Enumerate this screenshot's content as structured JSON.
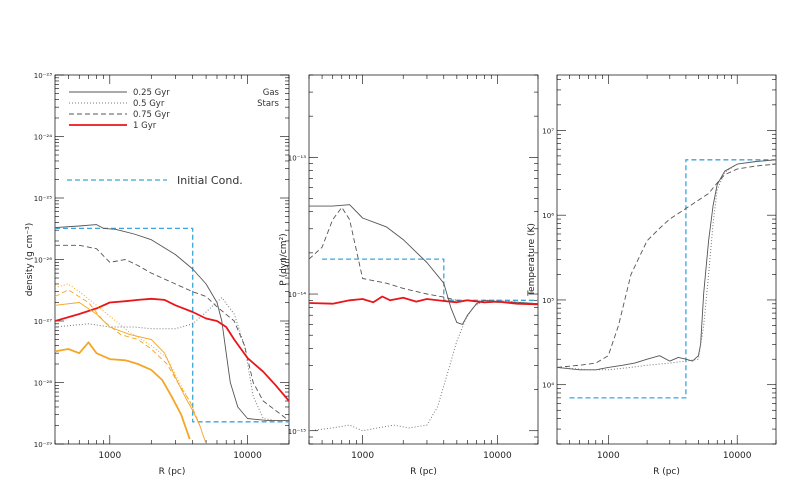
{
  "chart_data": [
    {
      "type": "line",
      "ylabel": "density (g cm⁻³)",
      "xlabel": "R (pc)",
      "xscale": "log",
      "yscale": "log",
      "xlim": [
        400,
        20000
      ],
      "ylim": [
        1e-29,
        1e-23
      ],
      "xticks": [
        {
          "v": 1000,
          "label": "1000"
        },
        {
          "v": 10000,
          "label": "10000"
        }
      ],
      "yticks": [
        {
          "v": 1e-23,
          "label": "10⁻²³"
        },
        {
          "v": 1e-24,
          "label": "10⁻²⁴"
        },
        {
          "v": 1e-25,
          "label": "10⁻²⁵"
        },
        {
          "v": 1e-26,
          "label": "10⁻²⁶"
        },
        {
          "v": 1e-27,
          "label": "10⁻²⁷"
        },
        {
          "v": 1e-28,
          "label": "10⁻²⁸"
        },
        {
          "v": 1e-29,
          "label": "10⁻²⁹"
        }
      ],
      "legend": {
        "entries": [
          {
            "label": "0.25 Gyr",
            "style": "solid",
            "color": "#555555"
          },
          {
            "label": "0.5 Gyr",
            "style": "dotted",
            "color": "#777777"
          },
          {
            "label": "0.75 Gyr",
            "style": "dashed",
            "color": "#555555"
          },
          {
            "label": "1 Gyr",
            "style": "thick",
            "color": "#e8161b"
          }
        ],
        "gas_label": "Gas",
        "stars_label": "Stars",
        "initial_label": "Initial Cond."
      },
      "series": [
        {
          "name": "Initial Cond.",
          "component": "gas",
          "style": "init",
          "color": "#3aa6dd",
          "x": [
            400,
            4000,
            4000,
            20000
          ],
          "y": [
            3.2e-26,
            3.2e-26,
            2.3e-29,
            2.3e-29
          ]
        },
        {
          "name": "0.25 Gyr",
          "component": "gas",
          "style": "solid",
          "color": "#555555",
          "x": [
            400,
            600,
            800,
            900,
            1100,
            1500,
            2000,
            3000,
            4000,
            5000,
            6000,
            6500,
            7000,
            7500,
            8500,
            10000,
            14000,
            20000
          ],
          "y": [
            3.3e-26,
            3.5e-26,
            3.7e-26,
            3.2e-26,
            3.1e-26,
            2.6e-26,
            2.1e-26,
            1.2e-26,
            7e-27,
            4e-27,
            2e-27,
            1e-27,
            3e-28,
            1e-28,
            4e-29,
            2.6e-29,
            2.4e-29,
            2.4e-29
          ]
        },
        {
          "name": "0.5 Gyr",
          "component": "gas",
          "style": "dotted",
          "color": "#777777",
          "x": [
            400,
            700,
            1000,
            1500,
            2000,
            3000,
            4000,
            5000,
            6500,
            8000,
            9500,
            11000,
            13000,
            16000,
            20000
          ],
          "y": [
            8e-28,
            9e-28,
            8e-28,
            8e-28,
            7.5e-28,
            7.5e-28,
            9e-28,
            1.4e-27,
            2.4e-27,
            1.3e-27,
            4e-28,
            6e-29,
            2.6e-29,
            2.4e-29,
            2.4e-29
          ]
        },
        {
          "name": "0.75 Gyr",
          "component": "gas",
          "style": "dashed",
          "color": "#555555",
          "x": [
            400,
            600,
            800,
            1000,
            1300,
            1600,
            2000,
            3000,
            4000,
            5000,
            6000,
            8000,
            9500,
            11000,
            13000,
            16000,
            20000
          ],
          "y": [
            1.7e-26,
            1.7e-26,
            1.5e-26,
            9e-27,
            1e-26,
            8e-27,
            6e-27,
            4e-27,
            3e-27,
            2.5e-27,
            1.7e-27,
            1e-27,
            4e-28,
            1e-28,
            5e-29,
            3.5e-29,
            2.4e-29
          ]
        },
        {
          "name": "1 Gyr",
          "component": "gas",
          "style": "thick",
          "color": "#e8161b",
          "x": [
            400,
            600,
            800,
            1000,
            1300,
            1600,
            2000,
            2500,
            3000,
            4000,
            5000,
            6000,
            7000,
            8000,
            10000,
            13000,
            16000,
            20000
          ],
          "y": [
            1e-27,
            1.3e-27,
            1.6e-27,
            2e-27,
            2.1e-27,
            2.2e-27,
            2.3e-27,
            2.2e-27,
            1.8e-27,
            1.4e-27,
            1.1e-27,
            1e-27,
            8e-28,
            5e-28,
            2.5e-28,
            1.5e-28,
            9e-29,
            5e-29
          ]
        },
        {
          "name": "0.25 Gyr",
          "component": "stars",
          "style": "solid",
          "color": "#f5a623",
          "x": [
            400,
            600,
            800,
            1000,
            1400,
            2000,
            2500,
            3000,
            3500,
            4000,
            4500,
            5000
          ],
          "y": [
            1.8e-27,
            2e-27,
            1.3e-27,
            8e-28,
            6e-28,
            5e-28,
            3e-28,
            1.2e-28,
            6e-29,
            3.5e-29,
            2e-29,
            1e-29
          ]
        },
        {
          "name": "0.5 Gyr",
          "component": "stars",
          "style": "dotted",
          "color": "#f5a623",
          "x": [
            400,
            500,
            600,
            800,
            1000,
            1400,
            2000,
            2600,
            3200,
            4000
          ],
          "y": [
            3.5e-27,
            4e-27,
            3e-27,
            1.8e-27,
            1.2e-27,
            6.5e-28,
            4e-28,
            2.5e-28,
            1e-28,
            4e-29
          ]
        },
        {
          "name": "0.75 Gyr",
          "component": "stars",
          "style": "dashed",
          "color": "#f5a623",
          "x": [
            400,
            500,
            700,
            900,
            1200,
            1600,
            2000,
            2600,
            3200,
            3800,
            4500
          ],
          "y": [
            2.5e-27,
            3.2e-27,
            2e-27,
            1e-27,
            6e-28,
            5e-28,
            3.5e-28,
            2e-28,
            9e-29,
            5e-29,
            2e-29
          ]
        },
        {
          "name": "1 Gyr",
          "component": "stars",
          "style": "thick",
          "color": "#f5a623",
          "x": [
            400,
            500,
            600,
            700,
            800,
            1000,
            1300,
            1600,
            2000,
            2400,
            2800,
            3300,
            3800
          ],
          "y": [
            3.2e-28,
            3.5e-28,
            3e-28,
            4.5e-28,
            3e-28,
            2.4e-28,
            2.3e-28,
            2e-28,
            1.6e-28,
            1.1e-28,
            6e-29,
            3e-29,
            1.2e-29
          ]
        }
      ]
    },
    {
      "type": "line",
      "ylabel": "P (dyn/cm²)",
      "xlabel": "R (pc)",
      "xscale": "log",
      "yscale": "log",
      "xlim": [
        400,
        20000
      ],
      "ylim": [
        8e-16,
        4e-13
      ],
      "xticks": [
        {
          "v": 1000,
          "label": "1000"
        },
        {
          "v": 10000,
          "label": "10000"
        }
      ],
      "yticks": [
        {
          "v": 1e-13,
          "label": "10⁻¹³"
        },
        {
          "v": 1e-14,
          "label": "10⁻¹⁴"
        },
        {
          "v": 1e-15,
          "label": "10⁻¹⁵"
        }
      ],
      "series": [
        {
          "name": "Initial Cond.",
          "style": "init",
          "color": "#3aa6dd",
          "x": [
            500,
            4000,
            4000,
            20000
          ],
          "y": [
            1.8e-14,
            1.8e-14,
            9e-15,
            9e-15
          ]
        },
        {
          "name": "0.25 Gyr",
          "style": "solid",
          "color": "#555555",
          "x": [
            400,
            600,
            800,
            1000,
            1500,
            2000,
            3000,
            4000,
            4500,
            5000,
            5500,
            6000,
            7000,
            8000,
            10000,
            14000,
            20000
          ],
          "y": [
            4.4e-14,
            4.4e-14,
            4.5e-14,
            3.6e-14,
            3.1e-14,
            2.5e-14,
            1.7e-14,
            1.2e-14,
            8e-15,
            6.2e-15,
            6e-15,
            7e-15,
            8.5e-15,
            9e-15,
            8.8e-15,
            8.7e-15,
            8.5e-15
          ]
        },
        {
          "name": "0.5 Gyr",
          "style": "dotted",
          "color": "#777777",
          "x": [
            400,
            600,
            800,
            1000,
            1300,
            1700,
            2200,
            3000,
            3600,
            4200,
            5000,
            5800,
            6600,
            8000,
            10000,
            20000
          ],
          "y": [
            1e-15,
            1.05e-15,
            1.1e-15,
            1e-15,
            1.05e-15,
            1.1e-15,
            1.05e-15,
            1.1e-15,
            1.5e-15,
            2.5e-15,
            4.5e-15,
            6.5e-15,
            8e-15,
            9e-15,
            9e-15,
            8.5e-15
          ]
        },
        {
          "name": "0.75 Gyr",
          "style": "dashed",
          "color": "#555555",
          "x": [
            400,
            500,
            600,
            700,
            800,
            1000,
            1500,
            2000,
            3000,
            4000,
            5000,
            6000,
            8000,
            10000,
            20000
          ],
          "y": [
            1.8e-14,
            2.2e-14,
            3.5e-14,
            4.3e-14,
            3.5e-14,
            1.3e-14,
            1.2e-14,
            1.1e-14,
            1e-14,
            9.5e-15,
            9e-15,
            9e-15,
            8.8e-15,
            8.7e-15,
            8.5e-15
          ]
        },
        {
          "name": "1 Gyr",
          "style": "thick",
          "color": "#e8161b",
          "x": [
            400,
            600,
            800,
            1000,
            1200,
            1400,
            1600,
            2000,
            2500,
            3000,
            4000,
            5000,
            6000,
            8000,
            10000,
            14000,
            20000
          ],
          "y": [
            8.6e-15,
            8.5e-15,
            9e-15,
            9.2e-15,
            8.7e-15,
            9.6e-15,
            9e-15,
            9.4e-15,
            8.8e-15,
            9.2e-15,
            8.9e-15,
            8.7e-15,
            9e-15,
            8.7e-15,
            8.8e-15,
            8.5e-15,
            8.4e-15
          ]
        }
      ]
    },
    {
      "type": "line",
      "ylabel": "Temperature (K)",
      "xlabel": "R (pc)",
      "xscale": "log",
      "yscale": "log",
      "xlim": [
        400,
        20000
      ],
      "ylim": [
        2000.0,
        45000000.0
      ],
      "xticks": [
        {
          "v": 1000,
          "label": "1000"
        },
        {
          "v": 10000,
          "label": "10000"
        }
      ],
      "yticks": [
        {
          "v": 10000000.0,
          "label": "10⁷"
        },
        {
          "v": 1000000.0,
          "label": "10⁶"
        },
        {
          "v": 100000.0,
          "label": "10⁵"
        },
        {
          "v": 10000.0,
          "label": "10⁴"
        }
      ],
      "series": [
        {
          "name": "Initial Cond.",
          "style": "init",
          "color": "#3aa6dd",
          "x": [
            500,
            4000,
            4000,
            20000
          ],
          "y": [
            7000.0,
            7000.0,
            4500000.0,
            4500000.0
          ]
        },
        {
          "name": "0.25 Gyr",
          "style": "solid",
          "color": "#555555",
          "x": [
            400,
            600,
            800,
            1000,
            1300,
            1600,
            2000,
            2500,
            3000,
            3500,
            4000,
            4500,
            5000,
            5200,
            5500,
            6000,
            6500,
            7000,
            8000,
            10000,
            14000,
            20000
          ],
          "y": [
            16000.0,
            15000.0,
            15000.0,
            16000.0,
            17000.0,
            18000.0,
            20000.0,
            22000.0,
            19000.0,
            21000.0,
            20000.0,
            19000.0,
            22000.0,
            30000.0,
            120000.0,
            500000.0,
            1300000.0,
            2300000.0,
            3300000.0,
            4000000.0,
            4300000.0,
            4500000.0
          ]
        },
        {
          "name": "0.5 Gyr",
          "style": "dotted",
          "color": "#777777",
          "x": [
            400,
            700,
            1000,
            1500,
            2000,
            3000,
            4000,
            5000,
            5500,
            6000,
            6500,
            7000,
            8000,
            10000,
            14000,
            20000
          ],
          "y": [
            16000.0,
            15000.0,
            15000.0,
            16000.0,
            17000.0,
            18000.0,
            19000.0,
            20000.0,
            50000.0,
            200000.0,
            800000.0,
            2000000.0,
            3200000.0,
            4000000.0,
            4300000.0,
            4500000.0
          ]
        },
        {
          "name": "0.75 Gyr",
          "style": "dashed",
          "color": "#555555",
          "x": [
            400,
            600,
            800,
            1000,
            1200,
            1500,
            2000,
            2500,
            3000,
            4000,
            5000,
            6000,
            7000,
            8000,
            10000,
            14000,
            20000
          ],
          "y": [
            16000.0,
            17000.0,
            18000.0,
            22000.0,
            50000.0,
            200000.0,
            500000.0,
            700000.0,
            900000.0,
            1200000.0,
            1500000.0,
            1800000.0,
            2400000.0,
            3000000.0,
            3500000.0,
            3800000.0,
            4000000.0
          ]
        }
      ]
    }
  ]
}
